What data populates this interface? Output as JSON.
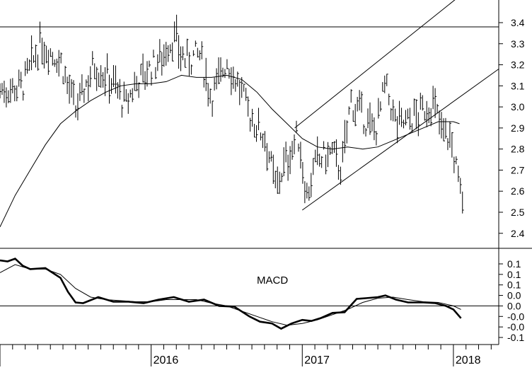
{
  "chart_data": [
    {
      "type": "ohlc",
      "panel": "price",
      "title": "",
      "xlabel": "",
      "ylabel": "",
      "ylim": [
        2.35,
        3.56
      ],
      "y_ticks": [
        2.4,
        2.5,
        2.6,
        2.7,
        2.8,
        2.9,
        3.0,
        3.1,
        3.2,
        3.3,
        3.4
      ],
      "y_tick_labels": [
        "2.4",
        "2.5",
        "2.6",
        "2.7",
        "2.8",
        "2.9",
        "3.0",
        "3.1",
        "3.2",
        "3.3",
        "3.4"
      ],
      "x_range": [
        2015.0,
        2018.3
      ],
      "x_tick_labels": [
        {
          "x": 2016.0,
          "label": "2016"
        },
        {
          "x": 2017.0,
          "label": "2017"
        },
        {
          "x": 2018.0,
          "label": "2018"
        }
      ],
      "moving_average": [
        [
          2015.0,
          2.43
        ],
        [
          2015.1,
          2.58
        ],
        [
          2015.2,
          2.7
        ],
        [
          2015.3,
          2.82
        ],
        [
          2015.4,
          2.92
        ],
        [
          2015.5,
          2.98
        ],
        [
          2015.6,
          3.03
        ],
        [
          2015.7,
          3.07
        ],
        [
          2015.8,
          3.1
        ],
        [
          2015.9,
          3.11
        ],
        [
          2016.0,
          3.11
        ],
        [
          2016.1,
          3.12
        ],
        [
          2016.2,
          3.15
        ],
        [
          2016.3,
          3.14
        ],
        [
          2016.4,
          3.14
        ],
        [
          2016.5,
          3.15
        ],
        [
          2016.6,
          3.13
        ],
        [
          2016.7,
          3.07
        ],
        [
          2016.8,
          2.99
        ],
        [
          2016.9,
          2.92
        ],
        [
          2017.0,
          2.85
        ],
        [
          2017.1,
          2.81
        ],
        [
          2017.2,
          2.8
        ],
        [
          2017.3,
          2.81
        ],
        [
          2017.4,
          2.8
        ],
        [
          2017.5,
          2.81
        ],
        [
          2017.6,
          2.84
        ],
        [
          2017.7,
          2.87
        ],
        [
          2017.8,
          2.9
        ],
        [
          2017.9,
          2.93
        ],
        [
          2018.0,
          2.93
        ],
        [
          2018.04,
          2.92
        ]
      ],
      "price_path": [
        [
          2015.0,
          3.08
        ],
        [
          2015.15,
          3.1
        ],
        [
          2015.27,
          3.3
        ],
        [
          2015.4,
          3.22
        ],
        [
          2015.5,
          2.98
        ],
        [
          2015.62,
          3.2
        ],
        [
          2015.75,
          3.12
        ],
        [
          2015.83,
          3.0
        ],
        [
          2015.9,
          3.12
        ],
        [
          2016.05,
          3.22
        ],
        [
          2016.15,
          3.33
        ],
        [
          2016.22,
          3.22
        ],
        [
          2016.32,
          3.25
        ],
        [
          2016.4,
          3.05
        ],
        [
          2016.5,
          3.22
        ],
        [
          2016.58,
          3.1
        ],
        [
          2016.66,
          2.95
        ],
        [
          2016.76,
          2.85
        ],
        [
          2016.82,
          2.62
        ],
        [
          2016.9,
          2.75
        ],
        [
          2016.97,
          2.87
        ],
        [
          2017.03,
          2.58
        ],
        [
          2017.1,
          2.75
        ],
        [
          2017.2,
          2.78
        ],
        [
          2017.26,
          2.7
        ],
        [
          2017.32,
          3.03
        ],
        [
          2017.4,
          2.95
        ],
        [
          2017.48,
          2.88
        ],
        [
          2017.55,
          3.1
        ],
        [
          2017.62,
          2.92
        ],
        [
          2017.7,
          2.93
        ],
        [
          2017.78,
          2.97
        ],
        [
          2017.86,
          3.02
        ],
        [
          2017.92,
          2.9
        ],
        [
          2017.98,
          2.85
        ],
        [
          2018.02,
          2.7
        ],
        [
          2018.05,
          2.58
        ],
        [
          2018.06,
          2.57
        ]
      ],
      "trendlines": [
        {
          "from": [
            2015.0,
            3.38
          ],
          "to": [
            2018.3,
            3.38
          ]
        },
        {
          "from": [
            2016.95,
            2.9
          ],
          "to": [
            2018.1,
            3.56
          ]
        },
        {
          "from": [
            2017.0,
            2.51
          ],
          "to": [
            2018.3,
            3.18
          ]
        }
      ]
    },
    {
      "type": "line",
      "panel": "indicator",
      "annotation": "MACD",
      "ylim": [
        -0.14,
        0.15
      ],
      "y_ticks": [
        0.12,
        0.09,
        0.06,
        0.03,
        0.0,
        -0.03,
        -0.06,
        -0.09
      ],
      "y_tick_labels": [
        "0.1",
        "0.1",
        "0.1",
        "0.0",
        "0.0",
        "-0.0",
        "-0.0",
        "-0.1"
      ],
      "zero_line": 0.0,
      "series": [
        {
          "values": [
            [
              2015.0,
              0.13
            ],
            [
              2015.05,
              0.127
            ],
            [
              2015.1,
              0.135
            ],
            [
              2015.15,
              0.115
            ],
            [
              2015.2,
              0.105
            ],
            [
              2015.3,
              0.108
            ],
            [
              2015.4,
              0.08
            ],
            [
              2015.45,
              0.04
            ],
            [
              2015.5,
              0.01
            ],
            [
              2015.55,
              0.008
            ],
            [
              2015.65,
              0.025
            ],
            [
              2015.75,
              0.012
            ],
            [
              2015.85,
              0.012
            ],
            [
              2015.95,
              0.008
            ],
            [
              2016.05,
              0.018
            ],
            [
              2016.15,
              0.025
            ],
            [
              2016.25,
              0.012
            ],
            [
              2016.35,
              0.018
            ],
            [
              2016.45,
              0.0
            ],
            [
              2016.55,
              -0.002
            ],
            [
              2016.65,
              -0.03
            ],
            [
              2016.72,
              -0.045
            ],
            [
              2016.8,
              -0.05
            ],
            [
              2016.86,
              -0.065
            ],
            [
              2016.93,
              -0.05
            ],
            [
              2017.0,
              -0.04
            ],
            [
              2017.06,
              -0.043
            ],
            [
              2017.12,
              -0.035
            ],
            [
              2017.2,
              -0.02
            ],
            [
              2017.28,
              -0.018
            ],
            [
              2017.36,
              0.02
            ],
            [
              2017.42,
              0.022
            ],
            [
              2017.5,
              0.025
            ],
            [
              2017.55,
              0.03
            ],
            [
              2017.62,
              0.018
            ],
            [
              2017.7,
              0.01
            ],
            [
              2017.8,
              0.01
            ],
            [
              2017.88,
              0.008
            ],
            [
              2017.95,
              0.0
            ],
            [
              2018.0,
              -0.01
            ],
            [
              2018.05,
              -0.035
            ]
          ]
        },
        {
          "values": [
            [
              2015.0,
              0.095
            ],
            [
              2015.1,
              0.118
            ],
            [
              2015.2,
              0.105
            ],
            [
              2015.3,
              0.105
            ],
            [
              2015.4,
              0.09
            ],
            [
              2015.5,
              0.05
            ],
            [
              2015.6,
              0.025
            ],
            [
              2015.7,
              0.018
            ],
            [
              2015.8,
              0.015
            ],
            [
              2015.9,
              0.012
            ],
            [
              2016.0,
              0.012
            ],
            [
              2016.1,
              0.018
            ],
            [
              2016.2,
              0.018
            ],
            [
              2016.3,
              0.018
            ],
            [
              2016.4,
              0.008
            ],
            [
              2016.5,
              0.0
            ],
            [
              2016.6,
              -0.015
            ],
            [
              2016.7,
              -0.03
            ],
            [
              2016.8,
              -0.045
            ],
            [
              2016.9,
              -0.055
            ],
            [
              2017.0,
              -0.05
            ],
            [
              2017.1,
              -0.04
            ],
            [
              2017.2,
              -0.025
            ],
            [
              2017.3,
              -0.01
            ],
            [
              2017.4,
              0.01
            ],
            [
              2017.5,
              0.022
            ],
            [
              2017.6,
              0.025
            ],
            [
              2017.7,
              0.018
            ],
            [
              2017.8,
              0.012
            ],
            [
              2017.9,
              0.01
            ],
            [
              2018.0,
              0.0
            ],
            [
              2018.05,
              -0.01
            ]
          ]
        }
      ]
    }
  ]
}
